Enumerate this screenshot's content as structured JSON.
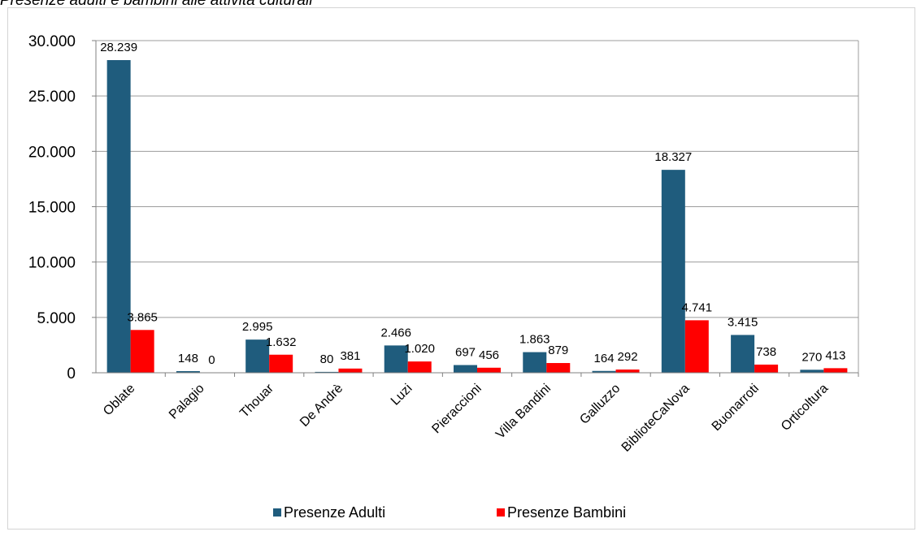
{
  "page_title": "Presenze adulti e bambini alle attività culturali",
  "chart_data": {
    "type": "bar",
    "categories": [
      "Oblate",
      "Palagio",
      "Thouar",
      "De Andrè",
      "Luzi",
      "Pieraccioni",
      "Villa Bandini",
      "Galluzzo",
      "BiblioteCaNova",
      "Buonarroti",
      "Orticoltura"
    ],
    "series": [
      {
        "name": "Presenze Adulti",
        "color": "#1f5c7d",
        "values": [
          28239,
          148,
          2995,
          80,
          2466,
          697,
          1863,
          164,
          18327,
          3415,
          270
        ],
        "labels": [
          "28.239",
          "148",
          "2.995",
          "80",
          "2.466",
          "697",
          "1.863",
          "164",
          "18.327",
          "3.415",
          "270"
        ]
      },
      {
        "name": "Presenze Bambini",
        "color": "#ff0000",
        "values": [
          3865,
          0,
          1632,
          381,
          1020,
          456,
          879,
          292,
          4741,
          738,
          413
        ],
        "labels": [
          "3.865",
          "0",
          "1.632",
          "381",
          "1.020",
          "456",
          "879",
          "292",
          "4.741",
          "738",
          "413"
        ]
      }
    ],
    "ylim": [
      0,
      30000
    ],
    "yticks": [
      0,
      5000,
      10000,
      15000,
      20000,
      25000,
      30000
    ],
    "ytick_labels": [
      "0",
      "5.000",
      "10.000",
      "15.000",
      "20.000",
      "25.000",
      "30.000"
    ],
    "grid": true,
    "legend_position": "bottom",
    "xlabel": "",
    "ylabel": ""
  }
}
